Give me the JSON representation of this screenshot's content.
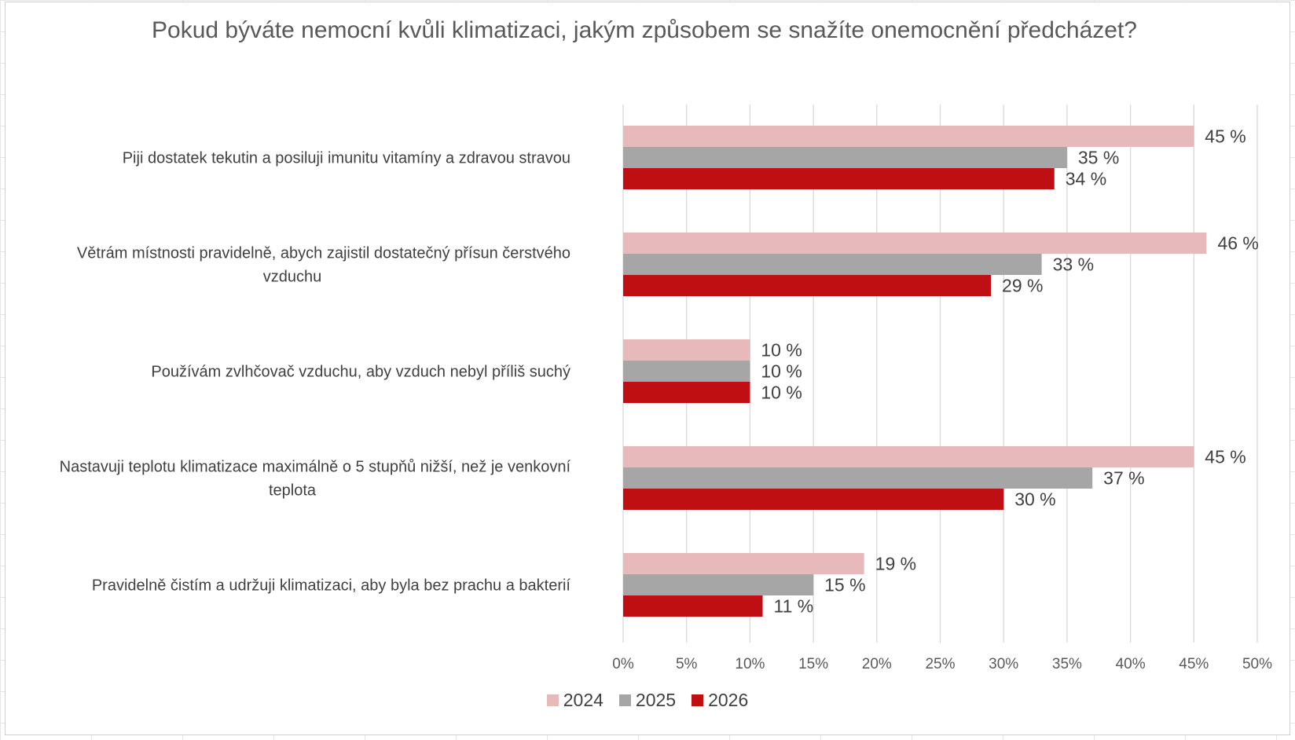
{
  "chart_data": {
    "type": "bar",
    "orientation": "horizontal",
    "title": "Pokud býváte nemocní kvůli klimatizaci, jakým způsobem se snažíte onemocnění předcházet?",
    "categories": [
      "Piji dostatek tekutin a posiluji imunitu vitamíny a zdravou stravou",
      "Větrám místnosti pravidelně, abych zajistil dostatečný přísun čerstvého vzduchu",
      "Používám zvlhčovač vzduchu, aby vzduch nebyl příliš suchý",
      "Nastavuji teplotu klimatizace maximálně o 5 stupňů nižší, než je venkovní teplota",
      "Pravidelně čistím a udržuji klimatizaci, aby byla bez prachu a bakterií"
    ],
    "series": [
      {
        "name": "2024",
        "color": "#e8b9bb",
        "values": [
          45,
          46,
          10,
          45,
          19
        ],
        "labels": [
          "45 %",
          "46 %",
          "10 %",
          "45 %",
          "19 %"
        ]
      },
      {
        "name": "2025",
        "color": "#a6a6a6",
        "values": [
          35,
          33,
          10,
          37,
          15
        ],
        "labels": [
          "35 %",
          "33 %",
          "10 %",
          "37 %",
          "15 %"
        ]
      },
      {
        "name": "2026",
        "color": "#c00f13",
        "values": [
          34,
          29,
          10,
          30,
          11
        ],
        "labels": [
          "34 %",
          "29 %",
          "10 %",
          "30 %",
          "11 %"
        ]
      }
    ],
    "xlim": [
      0,
      50
    ],
    "x_ticks": [
      0,
      5,
      10,
      15,
      20,
      25,
      30,
      35,
      40,
      45,
      50
    ],
    "x_tick_labels": [
      "0%",
      "5%",
      "10%",
      "15%",
      "20%",
      "25%",
      "30%",
      "35%",
      "40%",
      "45%",
      "50%"
    ],
    "grid": true,
    "legend_position": "bottom"
  }
}
